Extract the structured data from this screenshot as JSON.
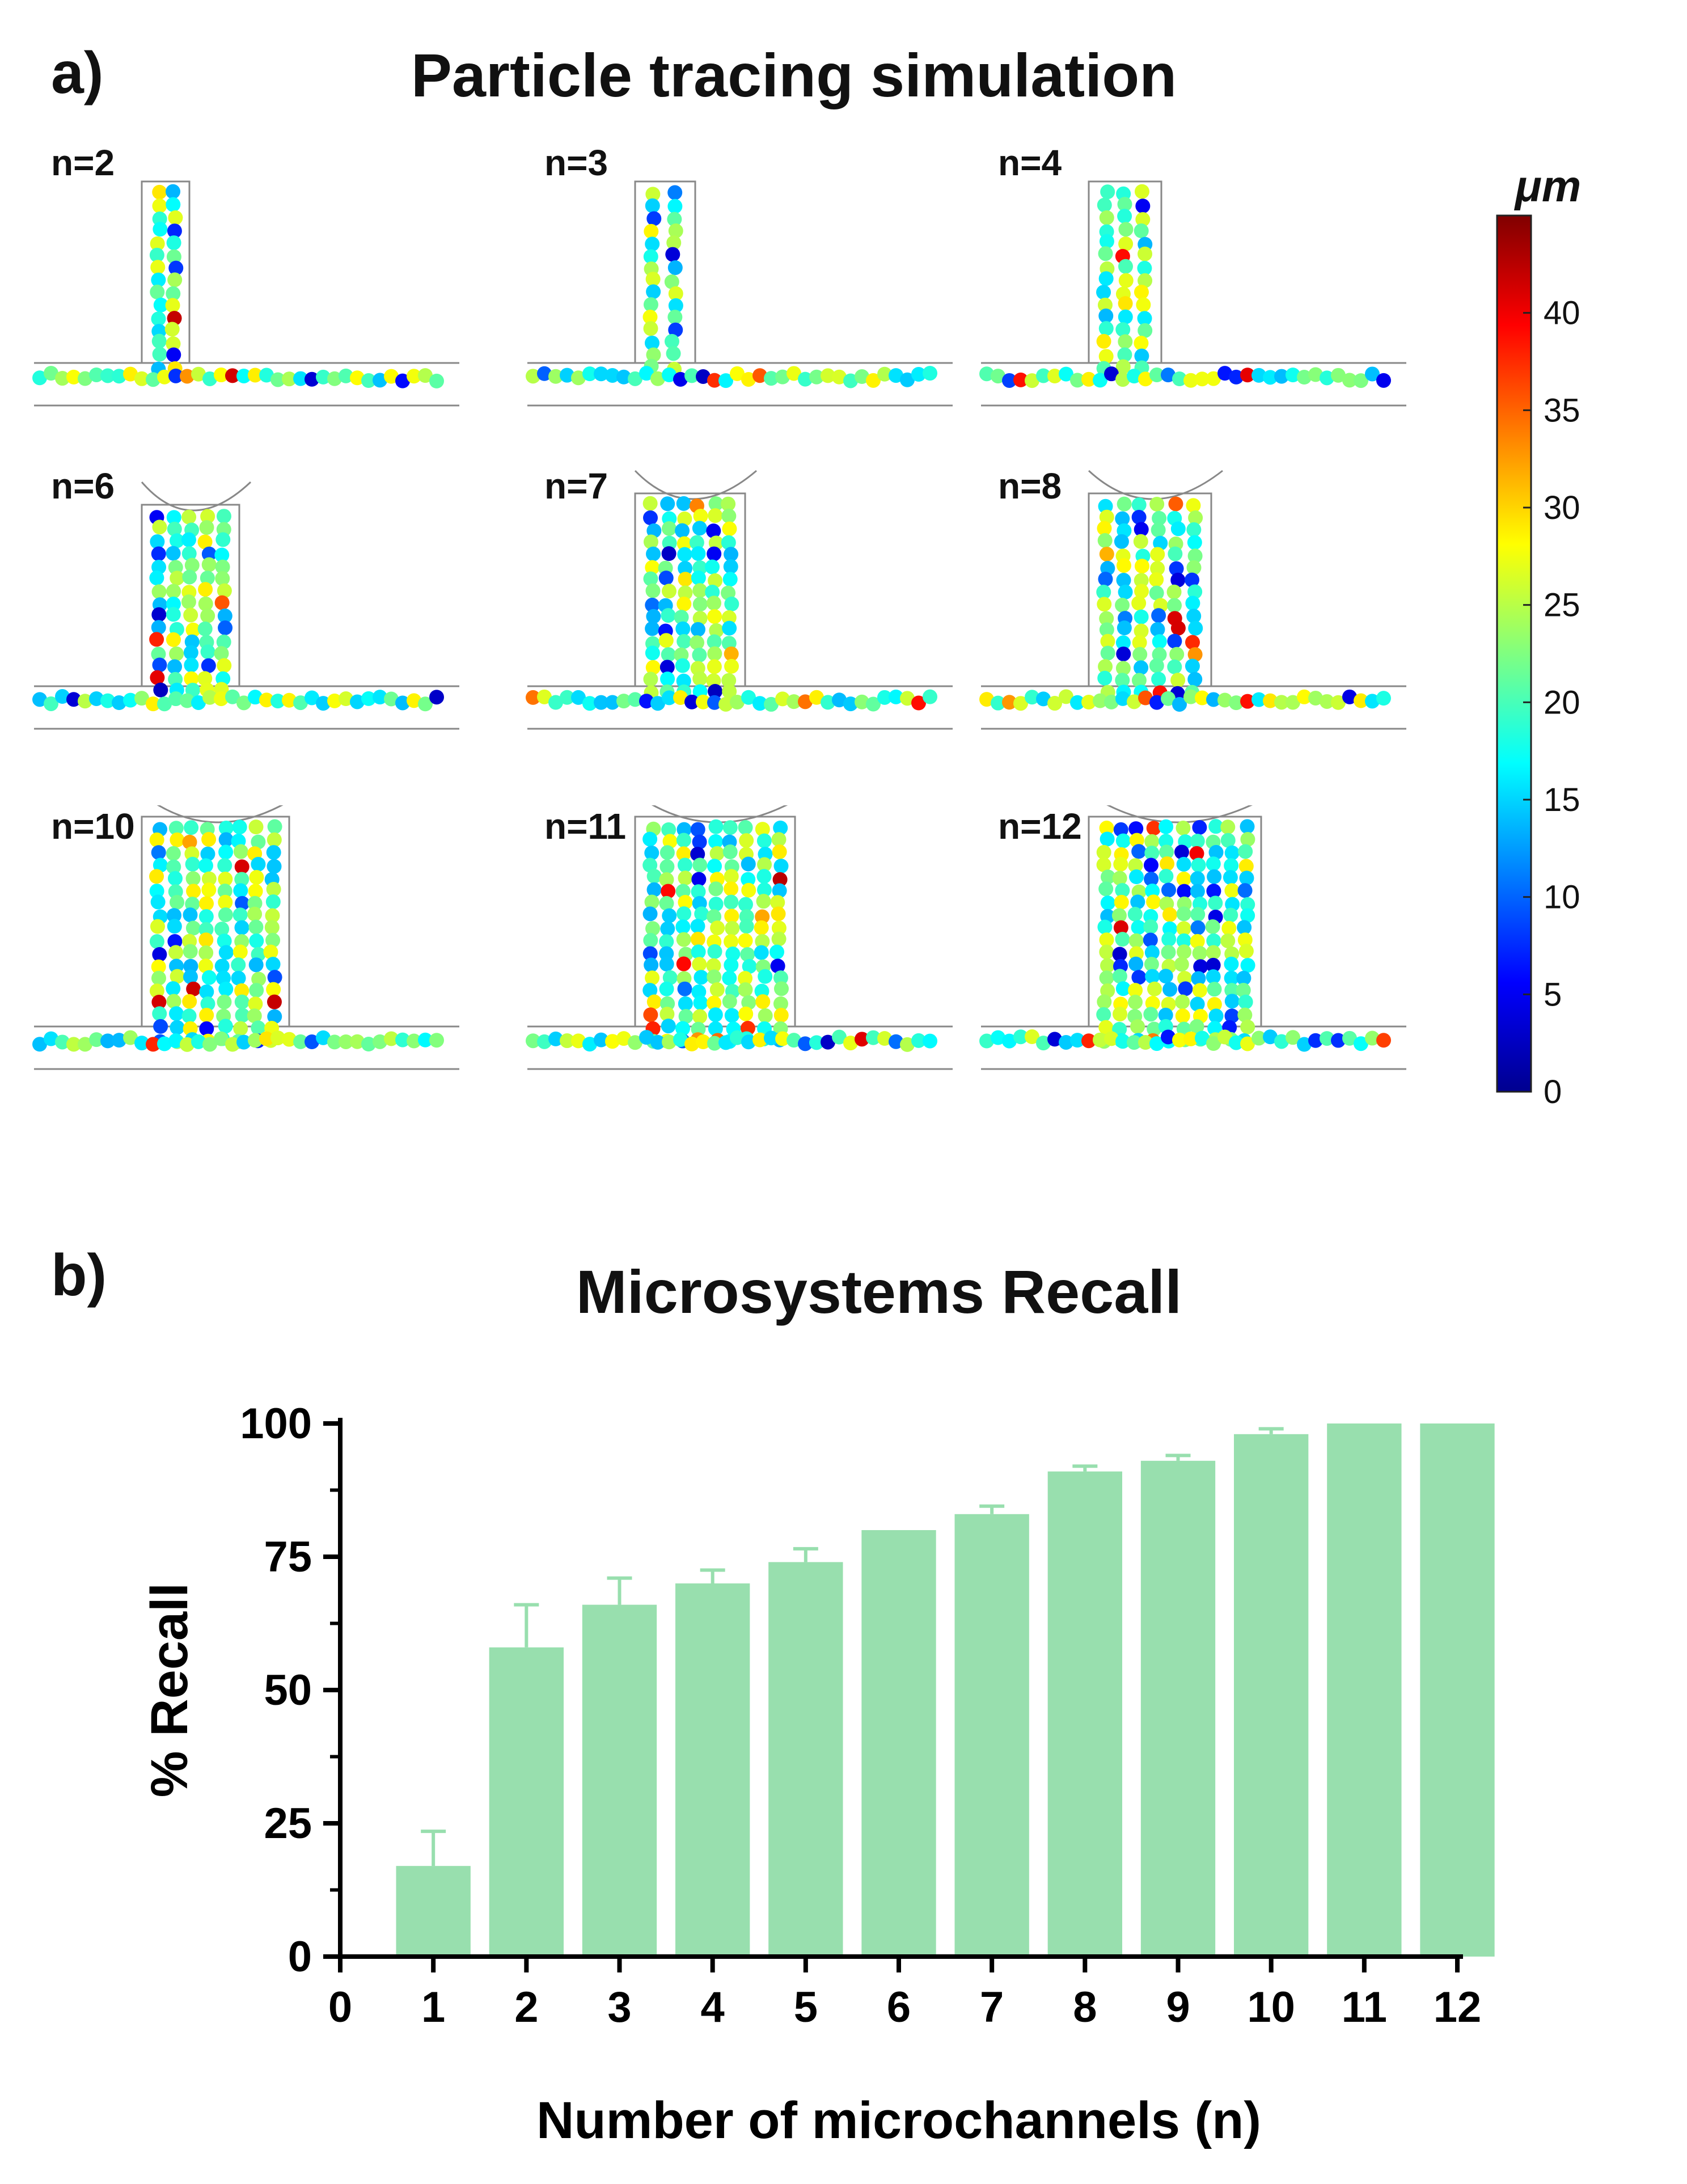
{
  "panel_a": {
    "label": "a)",
    "title": "Particle tracing simulation",
    "simulations": [
      {
        "label": "n=2",
        "n": 2
      },
      {
        "label": "n=3",
        "n": 3
      },
      {
        "label": "n=4",
        "n": 4
      },
      {
        "label": "n=6",
        "n": 6
      },
      {
        "label": "n=7",
        "n": 7
      },
      {
        "label": "n=8",
        "n": 8
      },
      {
        "label": "n=10",
        "n": 10
      },
      {
        "label": "n=11",
        "n": 11
      },
      {
        "label": "n=12",
        "n": 12
      }
    ],
    "colorbar": {
      "unit": "μm",
      "ticks": [
        "0",
        "5",
        "10",
        "15",
        "20",
        "25",
        "30",
        "35",
        "40"
      ],
      "min": 0,
      "max": 45,
      "colors": [
        "#00008f",
        "#0000ff",
        "#0080ff",
        "#00ffff",
        "#80ff80",
        "#ffff00",
        "#ff8000",
        "#ff0000",
        "#800000"
      ]
    }
  },
  "panel_b": {
    "label": "b)",
    "title": "Microsystems Recall"
  },
  "chart_data": {
    "type": "bar",
    "title": "Microsystems Recall",
    "xlabel": "Number of microchannels (n)",
    "ylabel": "% Recall",
    "categories": [
      "1",
      "2",
      "3",
      "4",
      "5",
      "6",
      "7",
      "8",
      "9",
      "10",
      "11",
      "12"
    ],
    "x_ticks": [
      "0",
      "1",
      "2",
      "3",
      "4",
      "5",
      "6",
      "7",
      "8",
      "9",
      "10",
      "11",
      "12"
    ],
    "values": [
      17,
      58,
      66,
      70,
      74,
      80,
      83,
      91,
      93,
      98,
      100,
      100
    ],
    "error_upper": [
      6.5,
      8,
      5,
      2.5,
      2.5,
      0,
      1.5,
      1,
      1,
      1,
      0,
      0
    ],
    "ylim": [
      0,
      100
    ],
    "xlim": [
      0,
      12
    ],
    "y_ticks": [
      "0",
      "25",
      "50",
      "75",
      "100"
    ],
    "y_tick_values": [
      0,
      25,
      50,
      75,
      100
    ],
    "bar_color": "#98dfae",
    "error_color": "#98dfae"
  }
}
